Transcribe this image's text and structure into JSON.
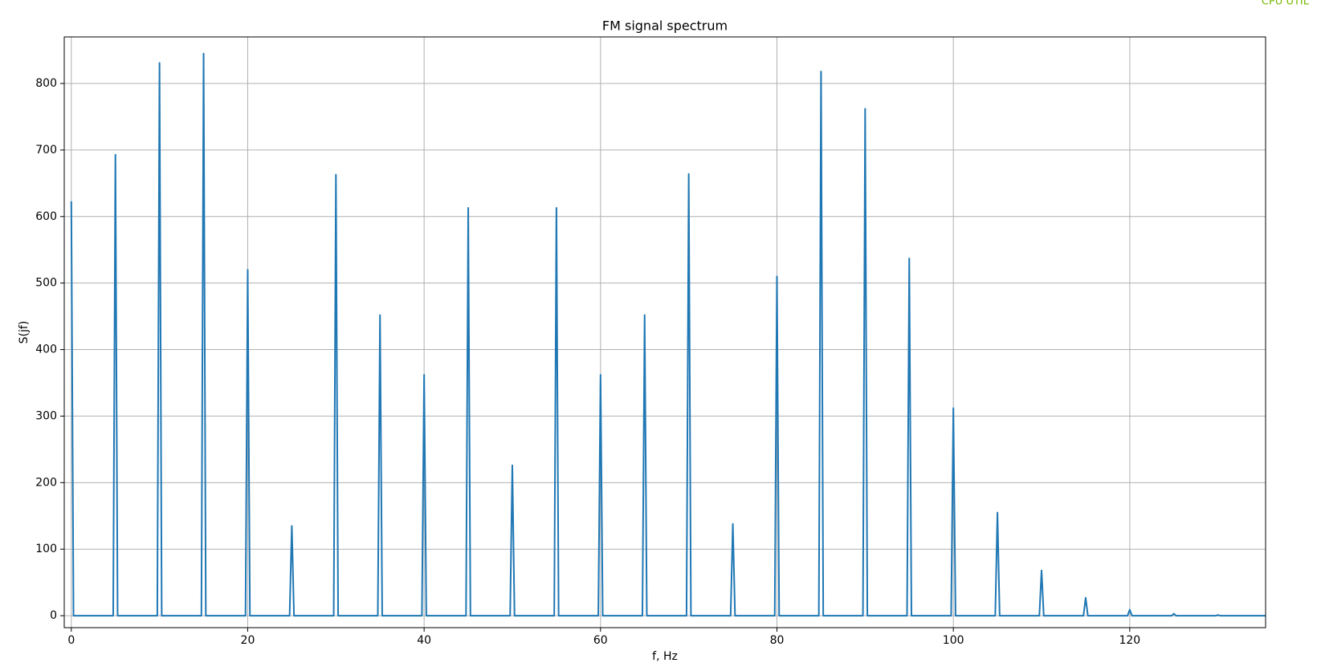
{
  "overlay_label": "CPU UTIL",
  "chart_data": {
    "type": "line",
    "title": "FM signal spectrum",
    "x_label": "f, Hz",
    "y_label": "S(jf)",
    "x": [
      0,
      0.25,
      4.75,
      5,
      5.25,
      9.75,
      10,
      10.25,
      14.75,
      15,
      15.25,
      19.75,
      20,
      20.25,
      24.75,
      25,
      25.25,
      29.75,
      30,
      30.25,
      34.75,
      35,
      35.25,
      39.75,
      40,
      40.25,
      44.75,
      45,
      45.25,
      49.75,
      50,
      50.25,
      54.75,
      55,
      55.25,
      59.75,
      60,
      60.25,
      64.75,
      65,
      65.25,
      69.75,
      70,
      70.25,
      74.75,
      75,
      75.25,
      79.75,
      80,
      80.25,
      84.75,
      85,
      85.25,
      89.75,
      90,
      90.25,
      94.75,
      95,
      95.25,
      99.75,
      100,
      100.25,
      104.75,
      105,
      105.25,
      109.75,
      110,
      110.25,
      114.75,
      115,
      115.25,
      119.75,
      120,
      120.25,
      124.75,
      125,
      125.25,
      129.75,
      130,
      130.25,
      135.4
    ],
    "series": [
      {
        "color": "#1f77b4",
        "values": [
          623,
          0,
          0,
          693,
          0,
          0,
          831,
          0,
          0,
          845,
          0,
          0,
          520,
          0,
          0,
          135,
          0,
          0,
          663,
          0,
          0,
          452,
          0,
          0,
          362,
          0,
          0,
          613,
          0,
          0,
          226,
          0,
          0,
          613,
          0,
          0,
          362,
          0,
          0,
          452,
          0,
          0,
          664,
          0,
          0,
          138,
          0,
          0,
          510,
          0,
          0,
          818,
          0,
          0,
          762,
          0,
          0,
          537,
          0,
          0,
          312,
          0,
          0,
          155,
          0,
          0,
          68,
          0,
          0,
          27,
          0,
          0,
          9,
          0,
          0,
          3,
          0,
          0,
          1,
          0,
          0
        ]
      }
    ],
    "xlim": [
      -0.8,
      135.4
    ],
    "ylim": [
      -18,
      870
    ],
    "xticks": [
      0,
      20,
      40,
      60,
      80,
      100,
      120
    ],
    "yticks": [
      0,
      100,
      200,
      300,
      400,
      500,
      600,
      700,
      800
    ],
    "grid": true
  }
}
